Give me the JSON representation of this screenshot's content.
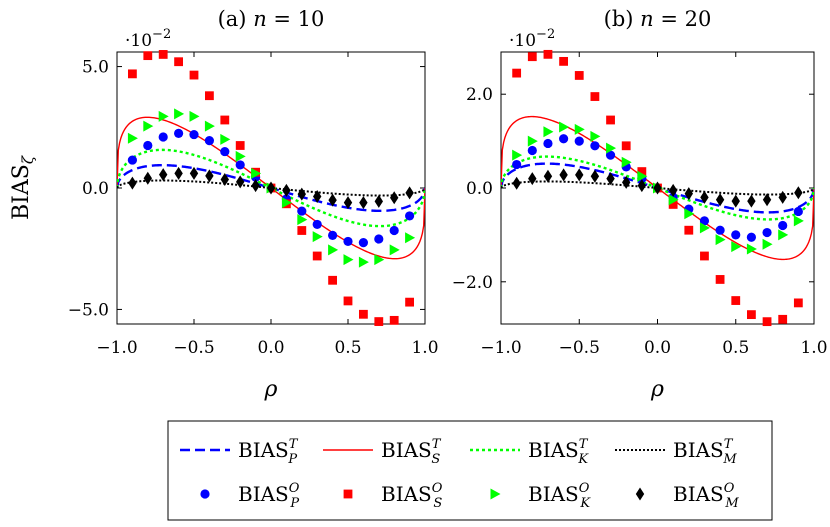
{
  "chart_data": [
    {
      "type": "line",
      "title": "(a) n = 10",
      "title_prefix": "(a) ",
      "title_var": "n",
      "title_rest": " = 10",
      "xlabel": "ρ",
      "ylabel": "BIAS",
      "ylabel_sub": "ζ",
      "scale_label": "·10",
      "scale_exp": "−2",
      "xlim": [
        -1.0,
        1.0
      ],
      "ylim": [
        -5.6,
        5.6
      ],
      "xticks": [
        -1.0,
        -0.5,
        0.0,
        0.5,
        1.0
      ],
      "xtick_labels": [
        "−1.0",
        "−0.5",
        "0.0",
        "0.5",
        "1.0"
      ],
      "yticks": [
        -5.0,
        0.0,
        5.0
      ],
      "ytick_labels": [
        "−5.0",
        "0.0",
        "5.0"
      ],
      "theory_amplitude": {
        "P": 0.94,
        "S": 2.62,
        "K": 1.57,
        "M": 0.31
      },
      "x_markers": [
        -0.9,
        -0.8,
        -0.7,
        -0.6,
        -0.5,
        -0.4,
        -0.3,
        -0.2,
        -0.1,
        0.0,
        0.1,
        0.2,
        0.3,
        0.4,
        0.5,
        0.6,
        0.7,
        0.8,
        0.9
      ],
      "series": [
        {
          "name": "BIAS_P^O",
          "marker": "circle",
          "color": "#0000ff",
          "values": [
            1.15,
            1.75,
            2.1,
            2.25,
            2.2,
            1.95,
            1.5,
            0.95,
            0.45,
            0.0,
            -0.45,
            -0.95,
            -1.5,
            -1.95,
            -2.2,
            -2.25,
            -2.1,
            -1.75,
            -1.15
          ]
        },
        {
          "name": "BIAS_S^O",
          "marker": "square",
          "color": "#ff0000",
          "values": [
            4.7,
            5.45,
            5.5,
            5.2,
            4.65,
            3.8,
            2.8,
            1.75,
            0.65,
            0.0,
            -0.65,
            -1.75,
            -2.8,
            -3.8,
            -4.65,
            -5.2,
            -5.5,
            -5.45,
            -4.7
          ]
        },
        {
          "name": "BIAS_K^O",
          "marker": "triangle",
          "color": "#00ff00",
          "values": [
            2.05,
            2.55,
            2.95,
            3.05,
            2.95,
            2.55,
            2.0,
            1.3,
            0.6,
            0.0,
            -0.6,
            -1.3,
            -2.0,
            -2.55,
            -2.95,
            -3.05,
            -2.95,
            -2.55,
            -2.05
          ]
        },
        {
          "name": "BIAS_M^O",
          "marker": "diamond",
          "color": "#000000",
          "values": [
            0.2,
            0.4,
            0.55,
            0.6,
            0.6,
            0.5,
            0.35,
            0.25,
            0.1,
            0.0,
            -0.1,
            -0.25,
            -0.35,
            -0.5,
            -0.6,
            -0.6,
            -0.55,
            -0.4,
            -0.2
          ]
        }
      ]
    },
    {
      "type": "line",
      "title": "(b) n = 20",
      "title_prefix": "(b) ",
      "title_var": "n",
      "title_rest": " = 20",
      "xlabel": "ρ",
      "ylabel": "",
      "scale_label": "·10",
      "scale_exp": "−2",
      "xlim": [
        -1.0,
        1.0
      ],
      "ylim": [
        -2.9,
        2.9
      ],
      "xticks": [
        -1.0,
        -0.5,
        0.0,
        0.5,
        1.0
      ],
      "xtick_labels": [
        "−1.0",
        "−0.5",
        "0.0",
        "0.5",
        "1.0"
      ],
      "yticks": [
        -2.0,
        0.0,
        2.0
      ],
      "ytick_labels": [
        "−2.0",
        "0.0",
        "2.0"
      ],
      "theory_amplitude": {
        "P": 0.52,
        "S": 1.37,
        "K": 0.67,
        "M": 0.14
      },
      "x_markers": [
        -0.9,
        -0.8,
        -0.7,
        -0.6,
        -0.5,
        -0.4,
        -0.3,
        -0.2,
        -0.1,
        0.0,
        0.1,
        0.2,
        0.3,
        0.4,
        0.5,
        0.6,
        0.7,
        0.8,
        0.9
      ],
      "series": [
        {
          "name": "BIAS_P^O",
          "marker": "circle",
          "color": "#0000ff",
          "values": [
            0.5,
            0.8,
            0.95,
            1.05,
            1.0,
            0.9,
            0.7,
            0.45,
            0.2,
            0.0,
            -0.2,
            -0.45,
            -0.7,
            -0.9,
            -1.0,
            -1.05,
            -0.95,
            -0.8,
            -0.5
          ]
        },
        {
          "name": "BIAS_S^O",
          "marker": "square",
          "color": "#ff0000",
          "values": [
            2.45,
            2.8,
            2.85,
            2.7,
            2.4,
            1.95,
            1.45,
            0.9,
            0.35,
            0.0,
            -0.35,
            -0.9,
            -1.45,
            -1.95,
            -2.4,
            -2.7,
            -2.85,
            -2.8,
            -2.45
          ]
        },
        {
          "name": "BIAS_K^O",
          "marker": "triangle",
          "color": "#00ff00",
          "values": [
            0.7,
            1.0,
            1.2,
            1.3,
            1.25,
            1.1,
            0.85,
            0.55,
            0.25,
            0.0,
            -0.25,
            -0.55,
            -0.85,
            -1.1,
            -1.25,
            -1.3,
            -1.2,
            -1.0,
            -0.7
          ]
        },
        {
          "name": "BIAS_M^O",
          "marker": "diamond",
          "color": "#000000",
          "values": [
            0.1,
            0.2,
            0.25,
            0.28,
            0.28,
            0.25,
            0.2,
            0.12,
            0.05,
            0.0,
            -0.05,
            -0.12,
            -0.2,
            -0.25,
            -0.28,
            -0.28,
            -0.25,
            -0.2,
            -0.1
          ]
        }
      ]
    }
  ],
  "theory_series": [
    {
      "key": "P",
      "name": "BIAS_P^T",
      "color": "#0000ff",
      "dash": "10,5",
      "width": 2.4
    },
    {
      "key": "S",
      "name": "BIAS_S^T",
      "color": "#ff0000",
      "dash": "",
      "width": 1.4
    },
    {
      "key": "K",
      "name": "BIAS_K^T",
      "color": "#00ff00",
      "dash": "3,3",
      "width": 2.4
    },
    {
      "key": "M",
      "name": "BIAS_M^T",
      "color": "#000000",
      "dash": "2,2",
      "width": 2.0
    }
  ],
  "legend": {
    "entries": [
      {
        "kind": "line",
        "key": "P",
        "base": "BIAS",
        "sub": "P",
        "sup": "T"
      },
      {
        "kind": "line",
        "key": "S",
        "base": "BIAS",
        "sub": "S",
        "sup": "T"
      },
      {
        "kind": "line",
        "key": "K",
        "base": "BIAS",
        "sub": "K",
        "sup": "T"
      },
      {
        "kind": "line",
        "key": "M",
        "base": "BIAS",
        "sub": "M",
        "sup": "T"
      },
      {
        "kind": "marker",
        "marker": "circle",
        "color": "#0000ff",
        "base": "BIAS",
        "sub": "P",
        "sup": "O"
      },
      {
        "kind": "marker",
        "marker": "square",
        "color": "#ff0000",
        "base": "BIAS",
        "sub": "S",
        "sup": "O"
      },
      {
        "kind": "marker",
        "marker": "triangle",
        "color": "#00ff00",
        "base": "BIAS",
        "sub": "K",
        "sup": "O"
      },
      {
        "kind": "marker",
        "marker": "diamond",
        "color": "#000000",
        "base": "BIAS",
        "sub": "M",
        "sup": "O"
      }
    ]
  }
}
